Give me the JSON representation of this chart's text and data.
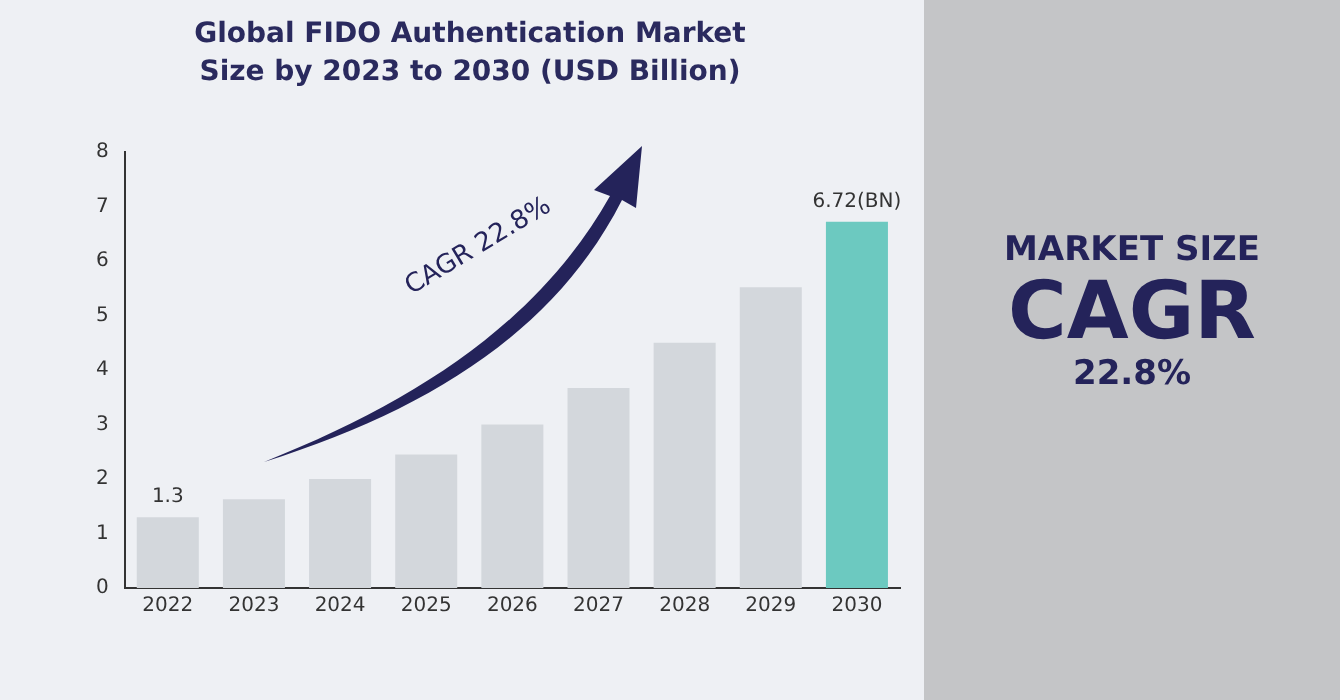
{
  "chart_data": {
    "type": "bar",
    "title": "Global FIDO Authentication Market Size by 2023 to 2030 (USD Billion)",
    "categories": [
      "2022",
      "2023",
      "2024",
      "2025",
      "2026",
      "2027",
      "2028",
      "2029",
      "2030"
    ],
    "values": [
      1.3,
      1.63,
      2.0,
      2.45,
      3.0,
      3.67,
      4.5,
      5.52,
      6.72
    ],
    "colors": [
      "#d3d7dc",
      "#d3d7dc",
      "#d3d7dc",
      "#d3d7dc",
      "#d3d7dc",
      "#d3d7dc",
      "#d3d7dc",
      "#d3d7dc",
      "#6cc9c0"
    ],
    "value_labels": [
      "1.3",
      null,
      null,
      null,
      null,
      null,
      null,
      null,
      "6.72(BN)"
    ],
    "ylim": [
      0,
      8
    ],
    "yticks": [
      0,
      1,
      2,
      3,
      4,
      5,
      6,
      7,
      8
    ],
    "grid": false,
    "legend": false,
    "annotations": [
      "CAGR 22.8%",
      "MARKET SIZE",
      "CAGR",
      "22.8%"
    ]
  }
}
